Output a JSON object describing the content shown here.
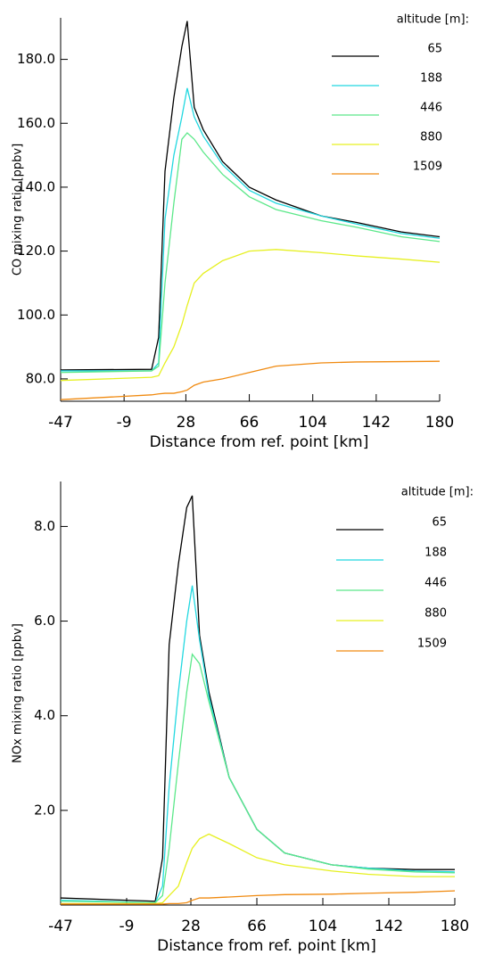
{
  "chart_data": [
    {
      "type": "line",
      "y_label": "CO mixing ratio [ppbv]",
      "x_label": "Distance from ref. point [km]",
      "legend_title": "altitude [m]:",
      "x": [
        -47,
        7.5,
        11.7,
        15.5,
        20.8,
        25.6,
        28.8,
        33,
        38.4,
        50,
        66,
        82,
        109,
        130,
        157,
        180
      ],
      "xlim": [
        -47,
        180
      ],
      "xticks": [
        -47,
        -9,
        28,
        66,
        104,
        142,
        180
      ],
      "ylim": [
        73,
        193
      ],
      "yticks": [
        {
          "value": 80,
          "label": "80.0"
        },
        {
          "value": 100,
          "label": "100.0"
        },
        {
          "value": 120,
          "label": "120.0"
        },
        {
          "value": 140,
          "label": "140.0"
        },
        {
          "value": 160,
          "label": "160.0"
        },
        {
          "value": 180,
          "label": "180.0"
        }
      ],
      "series": [
        {
          "name": "65",
          "color": "#000000",
          "values": [
            82.8,
            83,
            93,
            145,
            168,
            184,
            192,
            165,
            158,
            148,
            140,
            136,
            131,
            129,
            126,
            124.5
          ]
        },
        {
          "name": "188",
          "color": "#22d8e0",
          "values": [
            82.5,
            82.5,
            85,
            130,
            150,
            162,
            171,
            162,
            156,
            147,
            139,
            135,
            131,
            128.5,
            125.5,
            124
          ]
        },
        {
          "name": "446",
          "color": "#5ce88a",
          "values": [
            82,
            82.5,
            84,
            110,
            135,
            155,
            157,
            155,
            151,
            144,
            137,
            133,
            129.5,
            127.5,
            124.5,
            123
          ]
        },
        {
          "name": "880",
          "color": "#e6f020",
          "values": [
            79.5,
            80.5,
            81,
            85,
            90,
            97,
            103,
            110,
            113,
            117,
            120,
            120.5,
            119.5,
            118.5,
            117.5,
            116.5
          ]
        },
        {
          "name": "1509",
          "color": "#f08a10",
          "values": [
            73.5,
            75,
            75.3,
            75.5,
            75.5,
            76,
            76.5,
            78,
            79,
            80,
            82,
            84,
            85,
            85.3,
            85.4,
            85.5
          ]
        }
      ]
    },
    {
      "type": "line",
      "y_label": "NOx mixing ratio [ppbv]",
      "x_label": "Distance from ref. point [km]",
      "legend_title": "altitude [m]:",
      "x": [
        -47,
        7.5,
        11.7,
        15.5,
        20.8,
        25.6,
        28.8,
        33,
        38.4,
        50,
        66,
        82,
        109,
        130,
        157,
        180
      ],
      "xlim": [
        -47,
        180
      ],
      "xticks": [
        -47,
        -9,
        28,
        66,
        104,
        142,
        180
      ],
      "ylim": [
        0,
        8.95
      ],
      "yticks": [
        {
          "value": 2,
          "label": "2.0"
        },
        {
          "value": 4,
          "label": "4.0"
        },
        {
          "value": 6,
          "label": "6.0"
        },
        {
          "value": 8,
          "label": "8.0"
        }
      ],
      "series": [
        {
          "name": "65",
          "color": "#000000",
          "values": [
            0.15,
            0.08,
            1.0,
            5.5,
            7.2,
            8.4,
            8.65,
            5.7,
            4.5,
            2.7,
            1.6,
            1.1,
            0.85,
            0.78,
            0.75,
            0.75
          ]
        },
        {
          "name": "188",
          "color": "#22d8e0",
          "values": [
            0.1,
            0.05,
            0.4,
            2.5,
            4.5,
            6,
            6.75,
            5.6,
            4.4,
            2.7,
            1.6,
            1.1,
            0.85,
            0.78,
            0.72,
            0.7
          ]
        },
        {
          "name": "446",
          "color": "#5ce88a",
          "values": [
            0.08,
            0.05,
            0.2,
            1.2,
            3,
            4.5,
            5.3,
            5.1,
            4.3,
            2.7,
            1.6,
            1.1,
            0.85,
            0.76,
            0.7,
            0.68
          ]
        },
        {
          "name": "880",
          "color": "#e6f020",
          "values": [
            0.03,
            0.03,
            0.05,
            0.2,
            0.4,
            0.9,
            1.2,
            1.4,
            1.5,
            1.3,
            1.0,
            0.85,
            0.72,
            0.65,
            0.6,
            0.6
          ]
        },
        {
          "name": "1509",
          "color": "#f08a10",
          "values": [
            0.02,
            0.02,
            0.02,
            0.03,
            0.03,
            0.05,
            0.1,
            0.15,
            0.15,
            0.17,
            0.2,
            0.22,
            0.23,
            0.25,
            0.27,
            0.3
          ]
        }
      ]
    }
  ]
}
